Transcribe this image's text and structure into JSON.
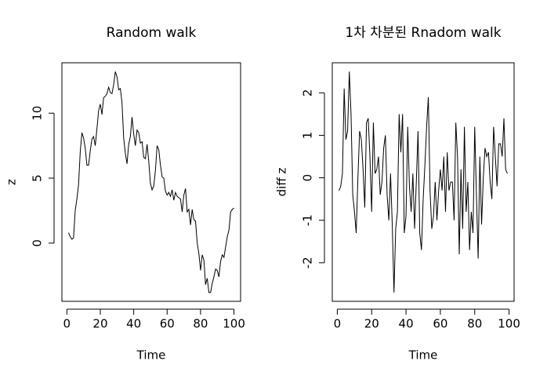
{
  "chart_data": [
    {
      "type": "line",
      "title": "Random walk",
      "xlabel": "Time",
      "ylabel": "z",
      "color": "#000000",
      "x": [
        1,
        2,
        3,
        4,
        5,
        6,
        7,
        8,
        9,
        10,
        11,
        12,
        13,
        14,
        15,
        16,
        17,
        18,
        19,
        20,
        21,
        22,
        23,
        24,
        25,
        26,
        27,
        28,
        29,
        30,
        31,
        32,
        33,
        34,
        35,
        36,
        37,
        38,
        39,
        40,
        41,
        42,
        43,
        44,
        45,
        46,
        47,
        48,
        49,
        50,
        51,
        52,
        53,
        54,
        55,
        56,
        57,
        58,
        59,
        60,
        61,
        62,
        63,
        64,
        65,
        66,
        67,
        68,
        69,
        70,
        71,
        72,
        73,
        74,
        75,
        76,
        77,
        78,
        79,
        80,
        81,
        82,
        83,
        84,
        85,
        86,
        87,
        88,
        89,
        90,
        91,
        92,
        93,
        94,
        95,
        96,
        97,
        98,
        99,
        100
      ],
      "values": [
        0.8,
        0.5,
        0.3,
        0.4,
        2.5,
        3.4,
        4.5,
        7.0,
        8.5,
        8.1,
        7.3,
        6.0,
        6.0,
        7.1,
        8.0,
        8.2,
        7.5,
        8.8,
        10.2,
        10.7,
        9.9,
        11.2,
        11.3,
        11.5,
        12.0,
        11.6,
        11.5,
        12.2,
        13.2,
        12.8,
        11.8,
        11.9,
        10.8,
        8.1,
        6.9,
        6.1,
        7.6,
        8.2,
        9.7,
        8.4,
        7.5,
        8.7,
        8.5,
        7.7,
        7.8,
        6.6,
        6.5,
        7.6,
        6.3,
        4.6,
        4.1,
        4.4,
        5.6,
        7.5,
        7.2,
        6.0,
        5.1,
        5.0,
        4.0,
        3.7,
        3.9,
        3.6,
        4.1,
        3.3,
        3.9,
        3.6,
        3.5,
        3.4,
        2.4,
        3.7,
        4.2,
        2.4,
        2.6,
        1.4,
        2.6,
        1.8,
        1.7,
        0.0,
        -0.8,
        -2.1,
        -0.9,
        -1.3,
        -3.2,
        -2.7,
        -3.8,
        -3.8,
        -3.1,
        -2.6,
        -2.0,
        -2.1,
        -2.6,
        -1.4,
        -0.9,
        -1.1,
        -0.3,
        0.5,
        1.0,
        2.4,
        2.6,
        2.7
      ],
      "xlim": [
        -2.96,
        103.96
      ],
      "ylim": [
        -4.48,
        13.88
      ],
      "xticks": [
        0,
        20,
        40,
        60,
        80,
        100
      ],
      "yticks": [
        0,
        5,
        10
      ]
    },
    {
      "type": "line",
      "title": "1차 차분된 Rnadom walk",
      "xlabel": "Time",
      "ylabel": "diff z",
      "color": "#000000",
      "x": [
        1,
        2,
        3,
        4,
        5,
        6,
        7,
        8,
        9,
        10,
        11,
        12,
        13,
        14,
        15,
        16,
        17,
        18,
        19,
        20,
        21,
        22,
        23,
        24,
        25,
        26,
        27,
        28,
        29,
        30,
        31,
        32,
        33,
        34,
        35,
        36,
        37,
        38,
        39,
        40,
        41,
        42,
        43,
        44,
        45,
        46,
        47,
        48,
        49,
        50,
        51,
        52,
        53,
        54,
        55,
        56,
        57,
        58,
        59,
        60,
        61,
        62,
        63,
        64,
        65,
        66,
        67,
        68,
        69,
        70,
        71,
        72,
        73,
        74,
        75,
        76,
        77,
        78,
        79,
        80,
        81,
        82,
        83,
        84,
        85,
        86,
        87,
        88,
        89,
        90,
        91,
        92,
        93,
        94,
        95,
        96,
        97,
        98,
        99
      ],
      "values": [
        -0.3,
        -0.2,
        0.1,
        2.1,
        0.9,
        1.1,
        2.5,
        1.5,
        -0.4,
        -0.8,
        -1.3,
        0.0,
        1.1,
        0.9,
        0.2,
        -0.7,
        1.3,
        1.4,
        0.5,
        -0.8,
        1.3,
        0.1,
        0.2,
        0.5,
        -0.4,
        -0.1,
        0.7,
        1.0,
        -0.4,
        -1.0,
        0.1,
        -1.1,
        -2.7,
        -1.2,
        -0.8,
        1.5,
        0.6,
        1.5,
        -1.3,
        -0.9,
        1.2,
        -0.2,
        -0.8,
        0.1,
        -1.2,
        -0.1,
        1.1,
        -1.3,
        -1.7,
        -0.5,
        0.3,
        1.2,
        1.9,
        -0.3,
        -1.2,
        -0.9,
        -0.1,
        -1.0,
        -0.3,
        0.2,
        -0.3,
        0.5,
        -0.8,
        0.6,
        -0.3,
        -0.1,
        -0.1,
        -1.0,
        1.3,
        0.5,
        -1.8,
        0.2,
        -1.2,
        1.2,
        -0.8,
        -0.1,
        -1.7,
        -0.8,
        -1.3,
        1.2,
        -0.4,
        -1.9,
        0.5,
        -1.1,
        0.0,
        0.7,
        0.5,
        0.6,
        -0.1,
        -0.5,
        1.2,
        0.5,
        -0.2,
        0.8,
        0.8,
        0.5,
        1.4,
        0.2,
        0.1
      ],
      "xlim": [
        -2.92,
        102.92
      ],
      "ylim": [
        -2.908,
        2.708
      ],
      "xticks": [
        0,
        20,
        40,
        60,
        80,
        100
      ],
      "yticks": [
        -2,
        -1,
        0,
        1,
        2
      ]
    }
  ]
}
